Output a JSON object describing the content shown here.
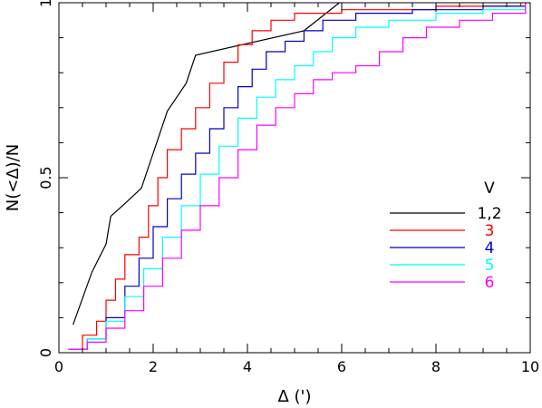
{
  "chart_data": {
    "type": "line",
    "title": "",
    "xlabel": "Δ (')",
    "ylabel": "N(<Δ)/N",
    "xlim": [
      0,
      10
    ],
    "ylim": [
      0,
      1
    ],
    "xticks": [
      "0",
      "2",
      "4",
      "6",
      "8",
      "10"
    ],
    "yticks": [
      "0",
      "0.5",
      "1"
    ],
    "grid": false,
    "legend": {
      "title": "V",
      "placement": "right"
    },
    "series": [
      {
        "name": "1,2",
        "color": "#000000",
        "step": false,
        "points": [
          [
            0.3,
            0.08
          ],
          [
            0.7,
            0.23
          ],
          [
            1.0,
            0.31
          ],
          [
            1.1,
            0.39
          ],
          [
            1.35,
            0.42
          ],
          [
            1.75,
            0.47
          ],
          [
            2.3,
            0.69
          ],
          [
            2.7,
            0.77
          ],
          [
            2.9,
            0.85
          ],
          [
            5.2,
            0.92
          ],
          [
            5.95,
            1.0
          ]
        ]
      },
      {
        "name": "3",
        "color": "#ff0000",
        "step": true,
        "points": [
          [
            0.2,
            0.01
          ],
          [
            0.5,
            0.05
          ],
          [
            0.8,
            0.09
          ],
          [
            1.0,
            0.15
          ],
          [
            1.2,
            0.21
          ],
          [
            1.4,
            0.28
          ],
          [
            1.7,
            0.33
          ],
          [
            1.9,
            0.42
          ],
          [
            2.1,
            0.5
          ],
          [
            2.3,
            0.58
          ],
          [
            2.6,
            0.64
          ],
          [
            2.9,
            0.7
          ],
          [
            3.2,
            0.77
          ],
          [
            3.5,
            0.83
          ],
          [
            3.8,
            0.88
          ],
          [
            4.1,
            0.92
          ],
          [
            4.5,
            0.95
          ],
          [
            5.0,
            0.97
          ],
          [
            6.0,
            0.98
          ],
          [
            8.0,
            0.99
          ],
          [
            9.8,
            1.0
          ]
        ]
      },
      {
        "name": "4",
        "color": "#0000cc",
        "step": true,
        "points": [
          [
            0.2,
            0.01
          ],
          [
            0.6,
            0.04
          ],
          [
            1.0,
            0.1
          ],
          [
            1.4,
            0.19
          ],
          [
            1.7,
            0.27
          ],
          [
            2.0,
            0.36
          ],
          [
            2.3,
            0.44
          ],
          [
            2.6,
            0.51
          ],
          [
            2.9,
            0.57
          ],
          [
            3.2,
            0.64
          ],
          [
            3.5,
            0.7
          ],
          [
            3.8,
            0.76
          ],
          [
            4.1,
            0.81
          ],
          [
            4.4,
            0.86
          ],
          [
            4.8,
            0.89
          ],
          [
            5.2,
            0.92
          ],
          [
            5.6,
            0.95
          ],
          [
            6.3,
            0.97
          ],
          [
            7.5,
            0.98
          ],
          [
            9.0,
            0.99
          ],
          [
            9.9,
            1.0
          ]
        ]
      },
      {
        "name": "5",
        "color": "#00ffff",
        "step": true,
        "points": [
          [
            0.2,
            0.01
          ],
          [
            0.6,
            0.04
          ],
          [
            1.0,
            0.09
          ],
          [
            1.4,
            0.16
          ],
          [
            1.8,
            0.24
          ],
          [
            2.2,
            0.33
          ],
          [
            2.6,
            0.42
          ],
          [
            3.0,
            0.51
          ],
          [
            3.4,
            0.59
          ],
          [
            3.8,
            0.67
          ],
          [
            4.2,
            0.73
          ],
          [
            4.6,
            0.78
          ],
          [
            5.0,
            0.82
          ],
          [
            5.4,
            0.86
          ],
          [
            5.8,
            0.9
          ],
          [
            6.3,
            0.93
          ],
          [
            7.0,
            0.95
          ],
          [
            8.0,
            0.97
          ],
          [
            9.0,
            0.98
          ],
          [
            9.9,
            1.0
          ]
        ]
      },
      {
        "name": "6",
        "color": "#ff00ff",
        "step": true,
        "points": [
          [
            0.2,
            0.01
          ],
          [
            0.6,
            0.03
          ],
          [
            1.0,
            0.07
          ],
          [
            1.4,
            0.12
          ],
          [
            1.8,
            0.19
          ],
          [
            2.2,
            0.27
          ],
          [
            2.6,
            0.35
          ],
          [
            3.0,
            0.42
          ],
          [
            3.4,
            0.5
          ],
          [
            3.8,
            0.58
          ],
          [
            4.2,
            0.65
          ],
          [
            4.6,
            0.7
          ],
          [
            5.0,
            0.74
          ],
          [
            5.4,
            0.78
          ],
          [
            5.8,
            0.8
          ],
          [
            6.3,
            0.82
          ],
          [
            6.8,
            0.86
          ],
          [
            7.3,
            0.9
          ],
          [
            7.8,
            0.93
          ],
          [
            8.5,
            0.95
          ],
          [
            9.2,
            0.97
          ],
          [
            9.9,
            1.0
          ]
        ]
      }
    ]
  }
}
